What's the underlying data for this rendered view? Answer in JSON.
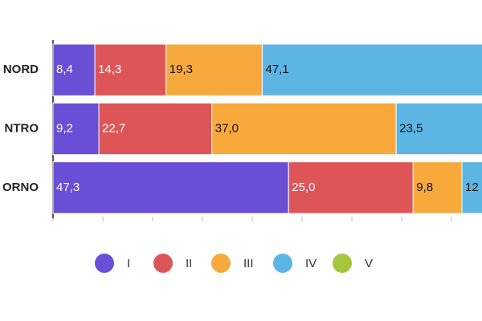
{
  "chart_data": {
    "type": "stacked-bar-horizontal",
    "categories": [
      "NORD",
      "NTRO",
      "ORNO"
    ],
    "series": [
      {
        "name": "I",
        "color": "#6a4fd6",
        "values": [
          8.4,
          9.2,
          47.3
        ],
        "value_labels": [
          "8,4",
          "9,2",
          "47,3"
        ]
      },
      {
        "name": "II",
        "color": "#de5558",
        "values": [
          14.3,
          22.7,
          25.0
        ],
        "value_labels": [
          "14,3",
          "22,7",
          "25,0"
        ]
      },
      {
        "name": "III",
        "color": "#f8a93b",
        "values": [
          19.3,
          37.0,
          9.8
        ],
        "value_labels": [
          "19,3",
          "37,0",
          "9,8"
        ]
      },
      {
        "name": "IV",
        "color": "#5db5e4",
        "values": [
          47.1,
          23.5,
          12
        ],
        "value_labels": [
          "47,1",
          "23,5",
          "12"
        ]
      },
      {
        "name": "V",
        "color": "#a5c63f",
        "values": [
          null,
          null,
          null
        ]
      }
    ],
    "xlim": [
      0,
      100
    ],
    "xticks": [
      0,
      10,
      20,
      30,
      40,
      50,
      60,
      70,
      80,
      90,
      100
    ]
  }
}
